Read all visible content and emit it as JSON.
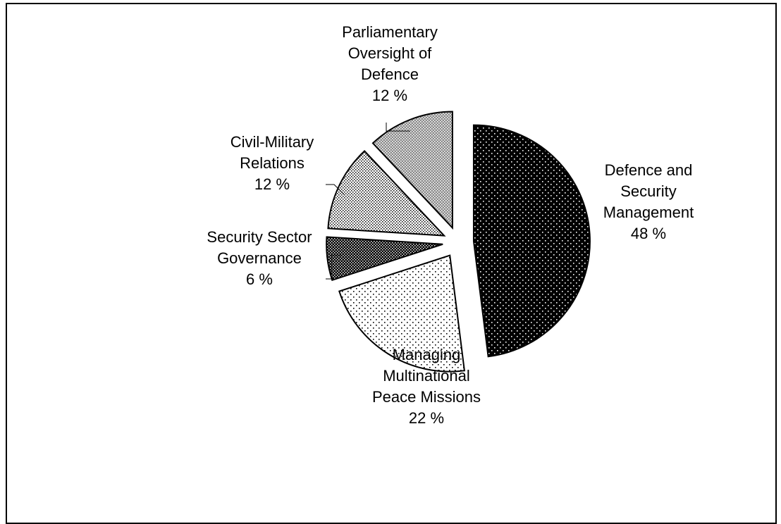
{
  "chart_data": {
    "type": "pie",
    "title": "",
    "slices": [
      {
        "label_lines": [
          "Defence and",
          "Security",
          "Management"
        ],
        "value": 48,
        "value_label": "48 %",
        "pattern": "dark-dots"
      },
      {
        "label_lines": [
          "Managing",
          "Multinational",
          "Peace Missions"
        ],
        "value": 22,
        "value_label": "22 %",
        "pattern": "light-dots"
      },
      {
        "label_lines": [
          "Security Sector",
          "Governance"
        ],
        "value": 6,
        "value_label": "6 %",
        "pattern": "dark-check"
      },
      {
        "label_lines": [
          "Civil-Military",
          "Relations"
        ],
        "value": 12,
        "value_label": "12 %",
        "pattern": "light-check"
      },
      {
        "label_lines": [
          "Parliamentary",
          "Oversight of",
          "Defence"
        ],
        "value": 12,
        "value_label": "12 %",
        "pattern": "mid-check"
      }
    ],
    "slice_order": "clockwise from top",
    "exploded": true
  }
}
